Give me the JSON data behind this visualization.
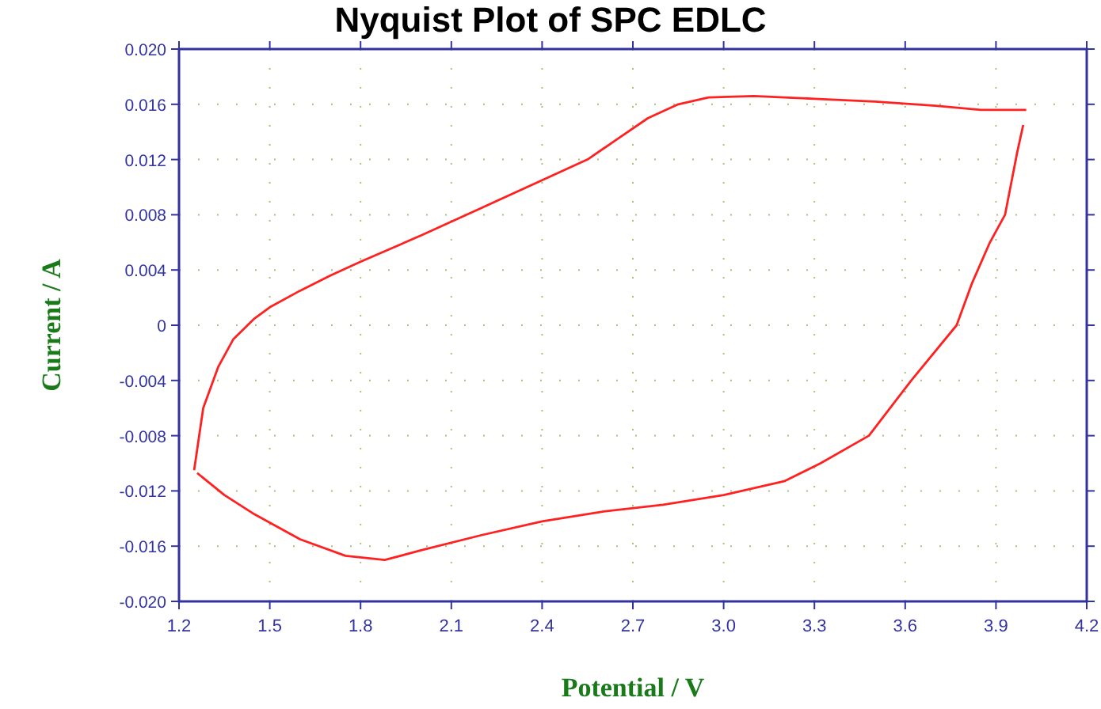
{
  "chart_data": {
    "type": "line",
    "title": "Nyquist Plot of SPC EDLC",
    "xlabel": "Potential / V",
    "ylabel": "Current / A",
    "xlim": [
      1.2,
      4.2
    ],
    "xticks": [
      1.2,
      1.5,
      1.8,
      2.1,
      2.4,
      2.7,
      {
        "value": 3.0,
        "label": "3.0"
      },
      3.3,
      3.6,
      3.9,
      4.2
    ],
    "ylim": [
      -0.02,
      0.02
    ],
    "yticks": [
      {
        "value": -0.02,
        "label": "-0.020"
      },
      -0.016,
      -0.012,
      -0.008,
      -0.004,
      0,
      0.004,
      0.008,
      0.012,
      0.016,
      {
        "value": 0.02,
        "label": "0.020"
      }
    ],
    "grid": true,
    "line_style": "solid",
    "marker": "none",
    "series": [
      {
        "color": "#ff2020",
        "x": [
          1.25,
          1.28,
          1.33,
          1.38,
          1.45,
          1.5,
          1.6,
          1.7,
          1.8,
          2.0,
          2.2,
          2.4,
          2.55,
          2.65,
          2.75,
          2.85,
          2.95,
          3.1,
          3.3,
          3.5,
          3.7,
          3.85,
          4.0
        ],
        "values": [
          -0.0105,
          -0.006,
          -0.003,
          -0.001,
          0.0005,
          0.0013,
          0.0025,
          0.0036,
          0.0046,
          0.0065,
          0.0085,
          0.0105,
          0.012,
          0.0135,
          0.015,
          0.016,
          0.0165,
          0.0166,
          0.0164,
          0.0162,
          0.0159,
          0.0156,
          0.0156
        ]
      },
      {
        "color": "#ff2020",
        "x": [
          1.26,
          1.35,
          1.45,
          1.6,
          1.75,
          1.88,
          2.0,
          2.2,
          2.4,
          2.6,
          2.8,
          3.0,
          3.2,
          3.32,
          3.48,
          3.62,
          3.77,
          3.82,
          3.88,
          3.93,
          3.97,
          3.99
        ],
        "values": [
          -0.0107,
          -0.0123,
          -0.0137,
          -0.0155,
          -0.0167,
          -0.017,
          -0.0163,
          -0.0152,
          -0.0142,
          -0.0135,
          -0.013,
          -0.0123,
          -0.0113,
          -0.01,
          -0.008,
          -0.004,
          0.0,
          0.003,
          0.006,
          0.008,
          0.0125,
          0.0145
        ]
      }
    ]
  }
}
